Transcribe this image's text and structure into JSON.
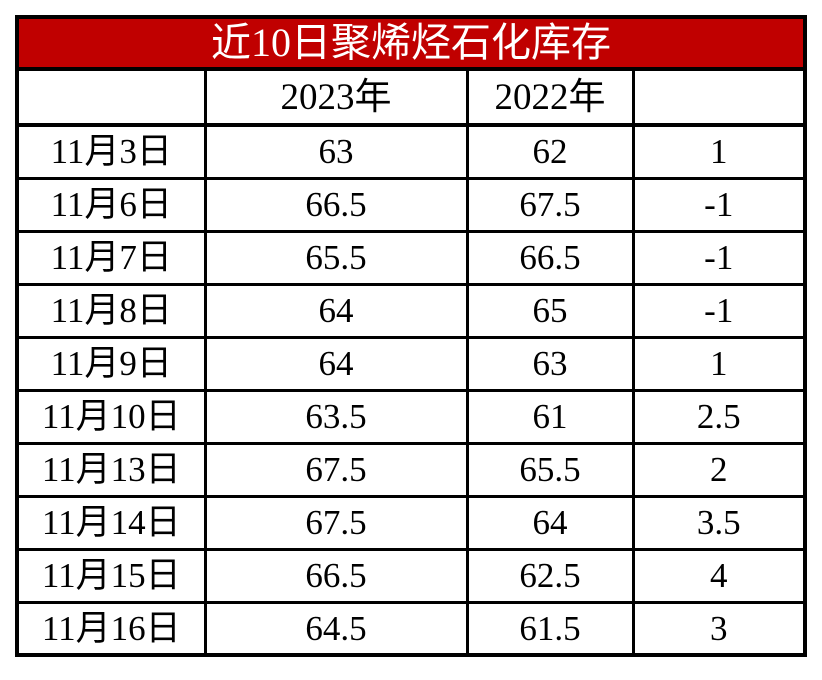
{
  "title": "近10日聚烯烃石化库存",
  "colors": {
    "header_bg": "#C00000",
    "header_text": "#FFFFFF",
    "grid": "#000000",
    "cell_bg": "#FFFFFF",
    "cell_text": "#000000"
  },
  "columns": {
    "date": "",
    "y2023": "2023年",
    "y2022": "2022年",
    "diff": ""
  },
  "rows": [
    {
      "date": "11月3日",
      "y2023": "63",
      "y2022": "62",
      "diff": "1"
    },
    {
      "date": "11月6日",
      "y2023": "66.5",
      "y2022": "67.5",
      "diff": "-1"
    },
    {
      "date": "11月7日",
      "y2023": "65.5",
      "y2022": "66.5",
      "diff": "-1"
    },
    {
      "date": "11月8日",
      "y2023": "64",
      "y2022": "65",
      "diff": "-1"
    },
    {
      "date": "11月9日",
      "y2023": "64",
      "y2022": "63",
      "diff": "1"
    },
    {
      "date": "11月10日",
      "y2023": "63.5",
      "y2022": "61",
      "diff": "2.5"
    },
    {
      "date": "11月13日",
      "y2023": "67.5",
      "y2022": "65.5",
      "diff": "2"
    },
    {
      "date": "11月14日",
      "y2023": "67.5",
      "y2022": "64",
      "diff": "3.5"
    },
    {
      "date": "11月15日",
      "y2023": "66.5",
      "y2022": "62.5",
      "diff": "4"
    },
    {
      "date": "11月16日",
      "y2023": "64.5",
      "y2022": "61.5",
      "diff": "3"
    }
  ],
  "chart_data": {
    "type": "table",
    "title": "近10日聚烯烃石化库存",
    "categories": [
      "11月3日",
      "11月6日",
      "11月7日",
      "11月8日",
      "11月9日",
      "11月10日",
      "11月13日",
      "11月14日",
      "11月15日",
      "11月16日"
    ],
    "series": [
      {
        "name": "2023年",
        "values": [
          63,
          66.5,
          65.5,
          64,
          64,
          63.5,
          67.5,
          67.5,
          66.5,
          64.5
        ]
      },
      {
        "name": "2022年",
        "values": [
          62,
          67.5,
          66.5,
          65,
          63,
          61,
          65.5,
          64,
          62.5,
          61.5
        ]
      },
      {
        "name": "",
        "values": [
          1,
          -1,
          -1,
          -1,
          1,
          2.5,
          2,
          3.5,
          4,
          3
        ]
      }
    ]
  }
}
